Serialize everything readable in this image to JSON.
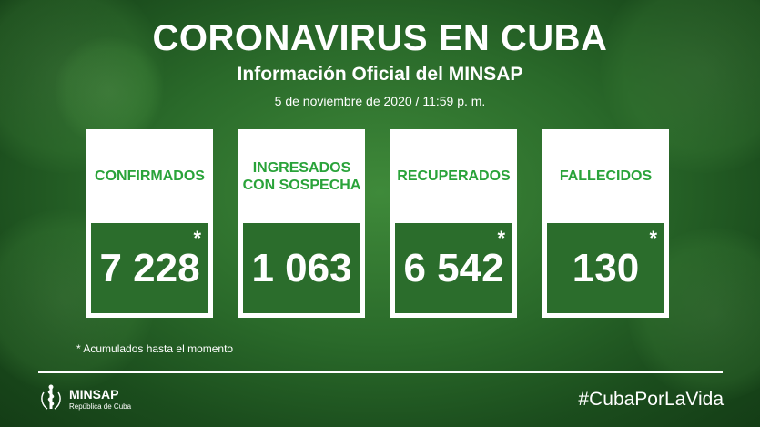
{
  "header": {
    "title": "CORONAVIRUS EN CUBA",
    "subtitle": "Información Oficial del MINSAP",
    "date": "5 de noviembre de 2020 / 11:59 p. m."
  },
  "cards": [
    {
      "label": "CONFIRMADOS",
      "value": "7 228",
      "asterisk": "*"
    },
    {
      "label": "INGRESADOS\nCON SOSPECHA",
      "value": "1 063",
      "asterisk": ""
    },
    {
      "label": "RECUPERADOS",
      "value": "6 542",
      "asterisk": "*"
    },
    {
      "label": "FALLECIDOS",
      "value": "130",
      "asterisk": "*"
    }
  ],
  "footnote": "* Acumulados hasta el momento",
  "footer": {
    "logo_name": "MINSAP",
    "logo_sub": "República de Cuba",
    "hashtag": "#CubaPorLaVida"
  },
  "colors": {
    "label_green": "#2aa33a",
    "card_fill": "#2b6d2c",
    "background": "#2a6a2a"
  }
}
